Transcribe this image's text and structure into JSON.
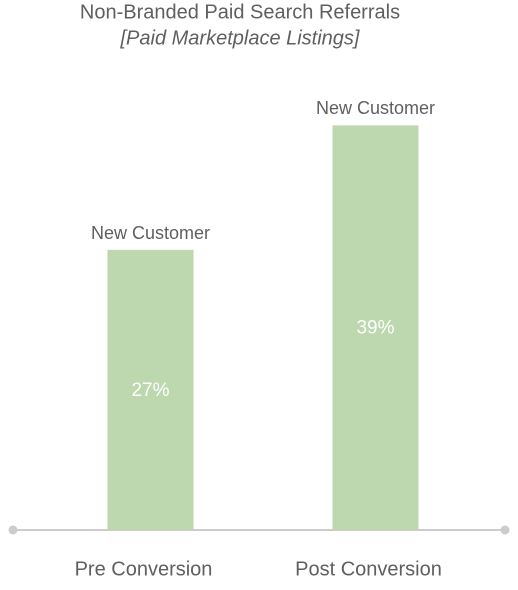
{
  "chart_data": {
    "type": "bar",
    "title": "Non-Branded Paid Search Referrals",
    "subtitle": "[Paid Marketplace Listings]",
    "categories": [
      "Pre Conversion",
      "Post Conversion"
    ],
    "values": [
      27,
      39
    ],
    "value_labels": [
      "27%",
      "39%"
    ],
    "annotations": [
      "New Customer",
      "New Customer"
    ],
    "color": "#bdd7ae",
    "ylim": [
      0,
      40
    ],
    "grid": false
  }
}
